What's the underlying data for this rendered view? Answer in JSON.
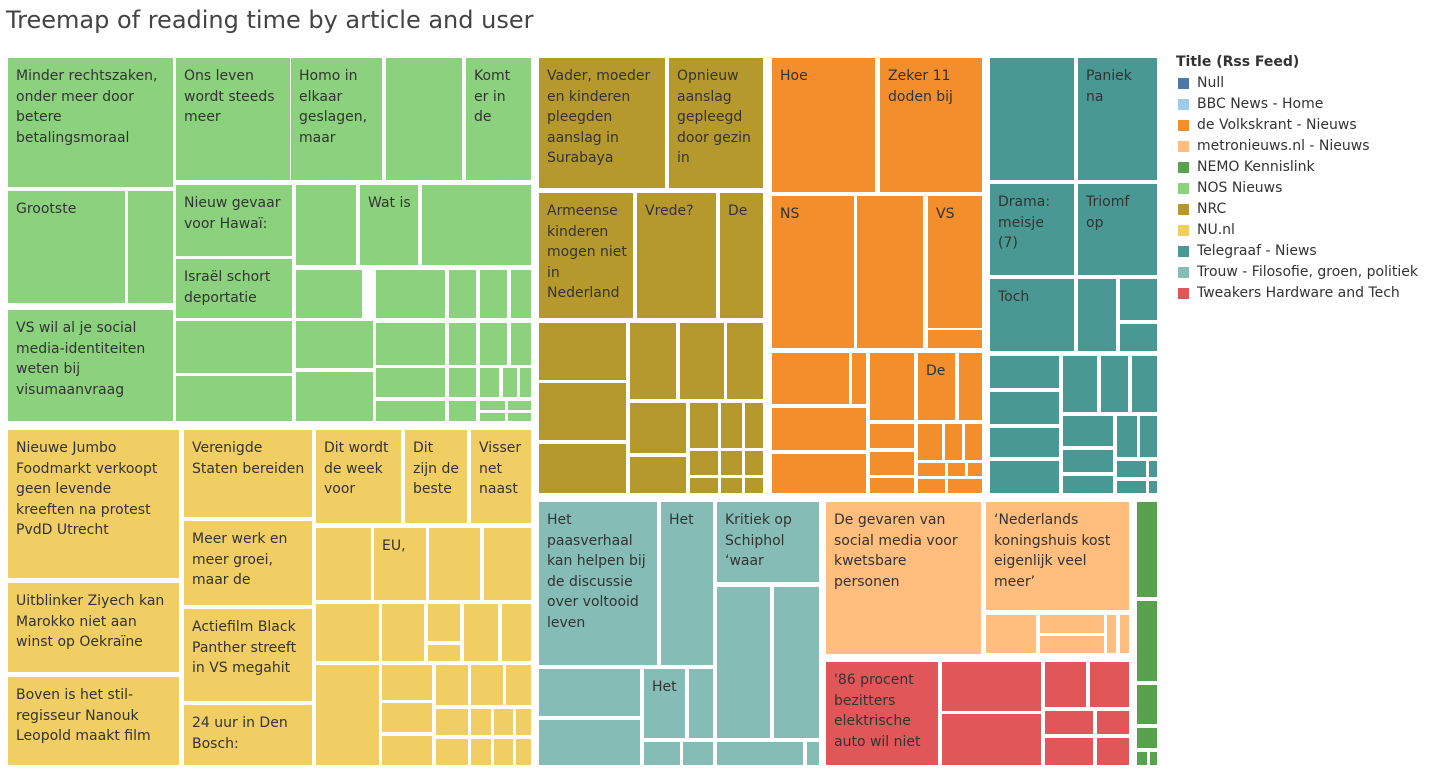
{
  "chart_data": {
    "type": "treemap",
    "title": "Treemap of reading time by article and user",
    "legend": {
      "title": "Title (Rss Feed)",
      "placement": "right",
      "items": [
        {
          "name": "Null",
          "color": "#4e79a7"
        },
        {
          "name": "BBC News - Home",
          "color": "#a0cbe8"
        },
        {
          "name": "de Volkskrant - Nieuws",
          "color": "#f28e2b"
        },
        {
          "name": "metronieuws.nl - Nieuws",
          "color": "#ffbe7d"
        },
        {
          "name": "NEMO Kennislink",
          "color": "#59a14f"
        },
        {
          "name": "NOS Nieuws",
          "color": "#8cd17d"
        },
        {
          "name": "NRC",
          "color": "#b6992d"
        },
        {
          "name": "NU.nl",
          "color": "#f1ce63"
        },
        {
          "name": "Telegraaf - Niews",
          "color": "#499894"
        },
        {
          "name": "Trouw - Filosofie, groen, politiek",
          "color": "#86bcb6"
        },
        {
          "name": "Tweakers Hardware and Tech",
          "color": "#e15759"
        }
      ]
    },
    "labeled_tiles": [
      {
        "feed": "NOS Nieuws",
        "label": "Minder rechtszaken, onder meer door betere betalingsmoraal"
      },
      {
        "feed": "NOS Nieuws",
        "label": "Ons leven wordt steeds meer"
      },
      {
        "feed": "NOS Nieuws",
        "label": "Homo in elkaar geslagen, maar"
      },
      {
        "feed": "NOS Nieuws",
        "label": "Komt er in de"
      },
      {
        "feed": "NOS Nieuws",
        "label": "Grootste"
      },
      {
        "feed": "NOS Nieuws",
        "label": "Nieuw gevaar voor Hawaï:"
      },
      {
        "feed": "NOS Nieuws",
        "label": "Wat is"
      },
      {
        "feed": "NOS Nieuws",
        "label": "Israël schort deportatie"
      },
      {
        "feed": "NOS Nieuws",
        "label": "VS wil al je social media-identiteiten weten bij visumaanvraag"
      },
      {
        "feed": "NRC",
        "label": "Vader, moeder en kinderen pleegden aanslag in Surabaya"
      },
      {
        "feed": "NRC",
        "label": "Opnieuw aanslag gepleegd door gezin in"
      },
      {
        "feed": "NRC",
        "label": "Armeense kinderen mogen niet in Nederland"
      },
      {
        "feed": "NRC",
        "label": "Vrede?"
      },
      {
        "feed": "NRC",
        "label": "De"
      },
      {
        "feed": "de Volkskrant - Nieuws",
        "label": "Hoe"
      },
      {
        "feed": "de Volkskrant - Nieuws",
        "label": "Zeker 11 doden bij"
      },
      {
        "feed": "de Volkskrant - Nieuws",
        "label": "NS"
      },
      {
        "feed": "de Volkskrant - Nieuws",
        "label": "VS"
      },
      {
        "feed": "de Volkskrant - Nieuws",
        "label": "De"
      },
      {
        "feed": "Telegraaf - Niews",
        "label": "Paniek na"
      },
      {
        "feed": "Telegraaf - Niews",
        "label": "Drama: meisje (7)"
      },
      {
        "feed": "Telegraaf - Niews",
        "label": "Triomf op"
      },
      {
        "feed": "Telegraaf - Niews",
        "label": "Toch"
      },
      {
        "feed": "NU.nl",
        "label": "Nieuwe Jumbo Foodmarkt verkoopt geen levende kreeften na protest PvdD Utrecht"
      },
      {
        "feed": "NU.nl",
        "label": "Verenigde Staten bereiden"
      },
      {
        "feed": "NU.nl",
        "label": "Dit wordt de week voor"
      },
      {
        "feed": "NU.nl",
        "label": "Dit zijn de beste"
      },
      {
        "feed": "NU.nl",
        "label": "Visser net naast"
      },
      {
        "feed": "NU.nl",
        "label": "EU,"
      },
      {
        "feed": "NU.nl",
        "label": "Meer werk en meer groei, maar de"
      },
      {
        "feed": "NU.nl",
        "label": "Uitblinker Ziyech kan Marokko niet aan winst op Oekraïne"
      },
      {
        "feed": "NU.nl",
        "label": "Actiefilm Black Panther streeft in VS megahit"
      },
      {
        "feed": "NU.nl",
        "label": "Boven is het stil-regisseur Nanouk Leopold maakt film"
      },
      {
        "feed": "NU.nl",
        "label": "24 uur in Den Bosch:"
      },
      {
        "feed": "Trouw - Filosofie, groen, politiek",
        "label": "Het paasverhaal kan helpen bij de discussie over voltooid leven"
      },
      {
        "feed": "Trouw - Filosofie, groen, politiek",
        "label": "Het"
      },
      {
        "feed": "Trouw - Filosofie, groen, politiek",
        "label": "Kritiek op Schiphol ‘waar"
      },
      {
        "feed": "Trouw - Filosofie, groen, politiek",
        "label": "Het"
      },
      {
        "feed": "metronieuws.nl - Nieuws",
        "label": "De gevaren van social media voor kwetsbare personen"
      },
      {
        "feed": "metronieuws.nl - Nieuws",
        "label": "‘Nederlands koningshuis kost eigenlijk veel meer’"
      },
      {
        "feed": "Tweakers Hardware and Tech",
        "label": "'86 procent bezitters elektrische auto wil niet"
      }
    ]
  }
}
